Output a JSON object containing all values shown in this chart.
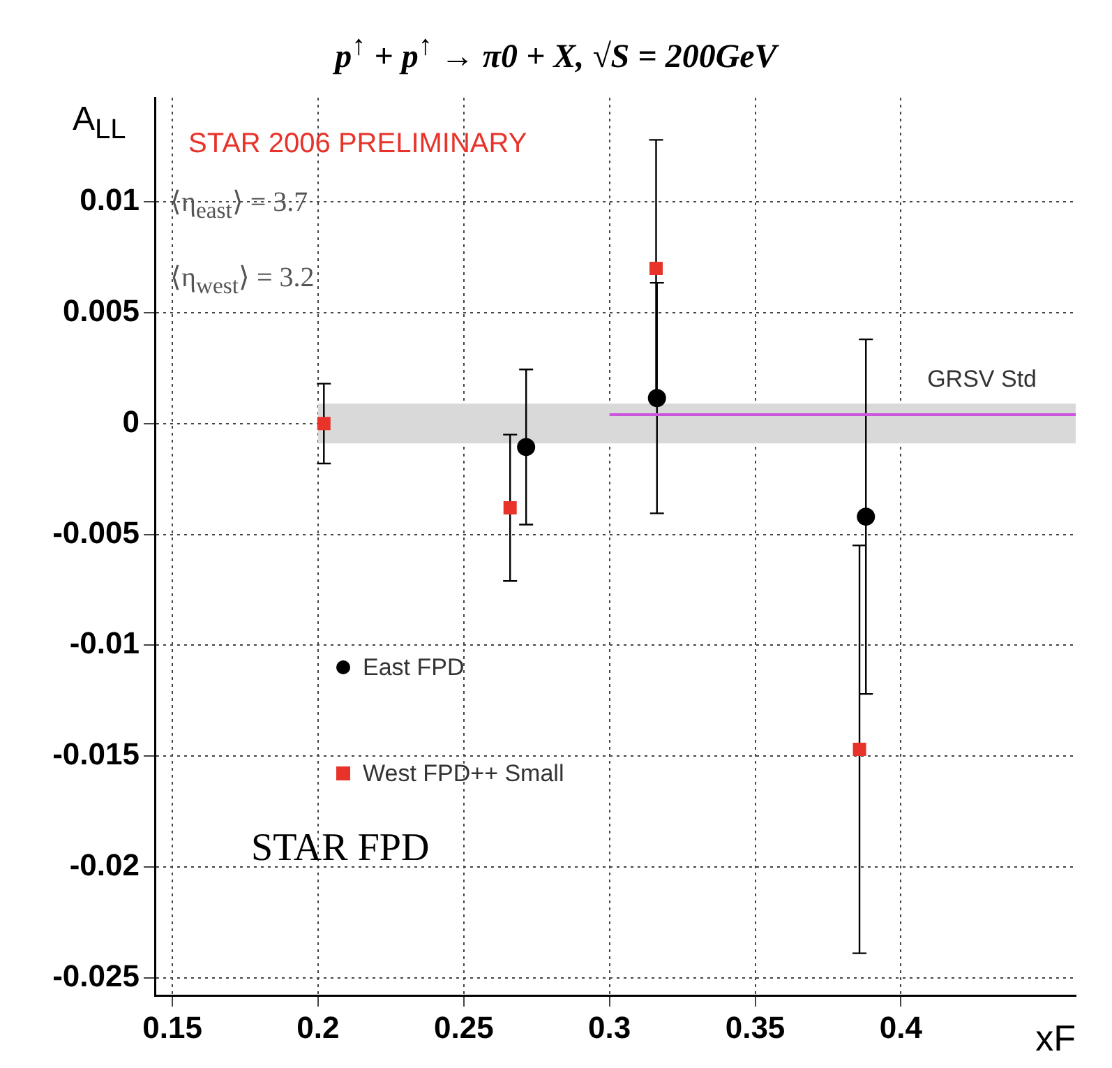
{
  "chart_data": {
    "type": "scatter",
    "title": "p$^{↑}$ + p$^{↑}$ → π0 + X, √S = 200GeV",
    "ylabel": "A$_{LL}$",
    "xlabel": "xF",
    "xlim": [
      0.144,
      0.46
    ],
    "xticks": [
      0.15,
      0.2,
      0.25,
      0.3,
      0.35,
      0.4
    ],
    "ylim": [
      -0.0258,
      0.0147
    ],
    "yticks": [
      -0.025,
      -0.02,
      -0.015,
      -0.01,
      -0.005,
      0,
      0.005,
      0.01
    ],
    "grid": true,
    "legend": "left",
    "series": [
      {
        "name": "East FPD",
        "color": "#000000",
        "marker": "circle",
        "x": [
          0.2714,
          0.3163,
          0.388
        ],
        "values": [
          -0.00106,
          0.00115,
          -0.0042
        ],
        "errors": [
          0.0035,
          0.0052,
          0.008
        ]
      },
      {
        "name": "West FPD++ Small",
        "color": "#e8332a",
        "marker": "square",
        "x": [
          0.202,
          0.2659,
          0.316,
          0.3858
        ],
        "values": [
          0,
          -0.0038,
          0.007,
          -0.0147
        ],
        "errors": [
          0.0018,
          0.0033,
          0.0058,
          0.0092
        ]
      },
      {
        "type": "area",
        "color": "#d9d9d9",
        "x": [
          0.2,
          0.46
        ],
        "values": [
          null,
          null
        ],
        "lower": [
          -0.0009,
          -0.0009
        ],
        "upper": [
          0.0009,
          0.0009
        ]
      },
      {
        "type": "line",
        "name": "GRSV Std",
        "color": "#cc55dd",
        "x": [
          0.3,
          0.46
        ],
        "values": [
          0.0004,
          0.0004
        ]
      }
    ],
    "annotations": [
      "STAR 2006 PRELIMINARY",
      "⟨η$_{east}$⟩ = 3.7",
      "⟨η$_{west}$⟩ = 3.2",
      "STAR FPD"
    ]
  }
}
